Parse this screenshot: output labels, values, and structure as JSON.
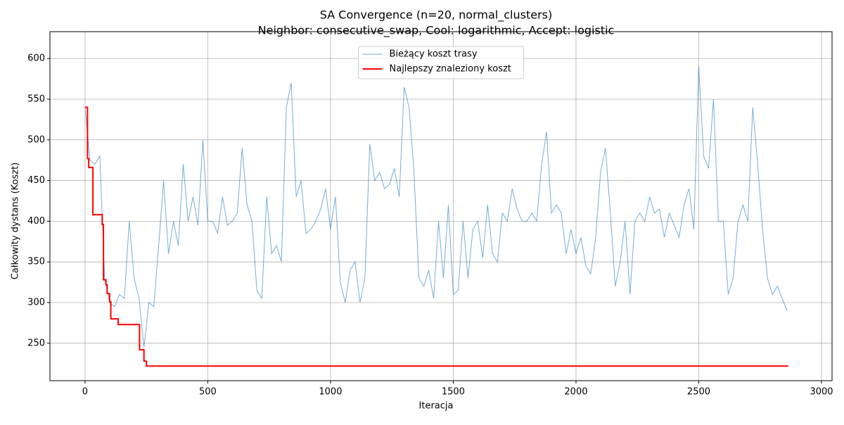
{
  "chart_data": {
    "type": "line",
    "title": "SA Convergence (n=20, normal_clusters)",
    "subtitle": "Neighbor: consecutive_swap, Cool: logarithmic, Accept: logistic",
    "xlabel": "Iteracja",
    "ylabel": "Całkowity dystans (Koszt)",
    "xlim": [
      -143,
      3043
    ],
    "ylim": [
      204,
      633
    ],
    "xticks": [
      0,
      500,
      1000,
      1500,
      2000,
      2500,
      3000
    ],
    "yticks": [
      250,
      300,
      350,
      400,
      450,
      500,
      550,
      600
    ],
    "grid": true,
    "legend": "upper center",
    "series": [
      {
        "name": "Bieżący koszt trasy",
        "color": "#1f77b4",
        "opacity": 0.6,
        "width": 1,
        "x": [
          0,
          20,
          40,
          60,
          80,
          100,
          120,
          140,
          160,
          180,
          200,
          220,
          240,
          260,
          280,
          300,
          320,
          340,
          360,
          380,
          400,
          420,
          440,
          460,
          480,
          500,
          520,
          540,
          560,
          580,
          600,
          620,
          640,
          660,
          680,
          700,
          720,
          740,
          760,
          780,
          800,
          820,
          840,
          860,
          880,
          900,
          920,
          940,
          960,
          980,
          1000,
          1020,
          1040,
          1060,
          1080,
          1100,
          1120,
          1140,
          1160,
          1180,
          1200,
          1220,
          1240,
          1260,
          1280,
          1300,
          1320,
          1340,
          1360,
          1380,
          1400,
          1420,
          1440,
          1460,
          1480,
          1500,
          1520,
          1540,
          1560,
          1580,
          1600,
          1620,
          1640,
          1660,
          1680,
          1700,
          1720,
          1740,
          1760,
          1780,
          1800,
          1820,
          1840,
          1860,
          1880,
          1900,
          1920,
          1940,
          1960,
          1980,
          2000,
          2020,
          2040,
          2060,
          2080,
          2100,
          2120,
          2140,
          2160,
          2180,
          2200,
          2220,
          2240,
          2260,
          2280,
          2300,
          2320,
          2340,
          2360,
          2380,
          2400,
          2420,
          2440,
          2460,
          2480,
          2500,
          2520,
          2540,
          2560,
          2580,
          2600,
          2620,
          2640,
          2660,
          2680,
          2700,
          2720,
          2740,
          2760,
          2780,
          2800,
          2820,
          2840,
          2860
        ],
        "values": [
          540,
          475,
          470,
          480,
          330,
          300,
          295,
          310,
          305,
          400,
          330,
          305,
          245,
          300,
          295,
          370,
          450,
          360,
          400,
          370,
          470,
          400,
          430,
          395,
          500,
          400,
          400,
          385,
          430,
          395,
          400,
          410,
          490,
          420,
          400,
          315,
          305,
          430,
          360,
          370,
          350,
          540,
          570,
          430,
          450,
          385,
          390,
          400,
          415,
          440,
          390,
          430,
          325,
          300,
          340,
          350,
          300,
          330,
          495,
          450,
          460,
          440,
          445,
          465,
          430,
          565,
          540,
          460,
          330,
          320,
          340,
          305,
          400,
          330,
          420,
          310,
          315,
          400,
          330,
          390,
          400,
          355,
          420,
          360,
          350,
          410,
          400,
          440,
          415,
          400,
          400,
          410,
          400,
          470,
          510,
          410,
          420,
          410,
          360,
          390,
          360,
          380,
          345,
          335,
          380,
          460,
          490,
          410,
          320,
          350,
          400,
          310,
          400,
          410,
          400,
          430,
          410,
          415,
          380,
          410,
          395,
          380,
          420,
          440,
          390,
          590,
          480,
          465,
          550,
          400,
          400,
          310,
          330,
          400,
          420,
          400,
          540,
          470,
          390,
          330,
          310,
          320,
          305,
          290
        ]
      },
      {
        "name": "Najlepszy znaleziony koszt",
        "color": "#ff0000",
        "opacity": 1,
        "width": 2,
        "x": [
          0,
          10,
          10,
          15,
          15,
          32,
          32,
          70,
          70,
          75,
          75,
          85,
          85,
          90,
          90,
          100,
          100,
          105,
          105,
          135,
          135,
          222,
          222,
          240,
          240,
          250,
          250,
          2865
        ],
        "values": [
          540,
          540,
          477,
          477,
          466,
          466,
          408,
          408,
          396,
          396,
          328,
          328,
          322,
          322,
          311,
          311,
          301,
          301,
          280,
          280,
          273,
          273,
          242,
          242,
          228,
          228,
          222,
          222
        ]
      }
    ]
  }
}
